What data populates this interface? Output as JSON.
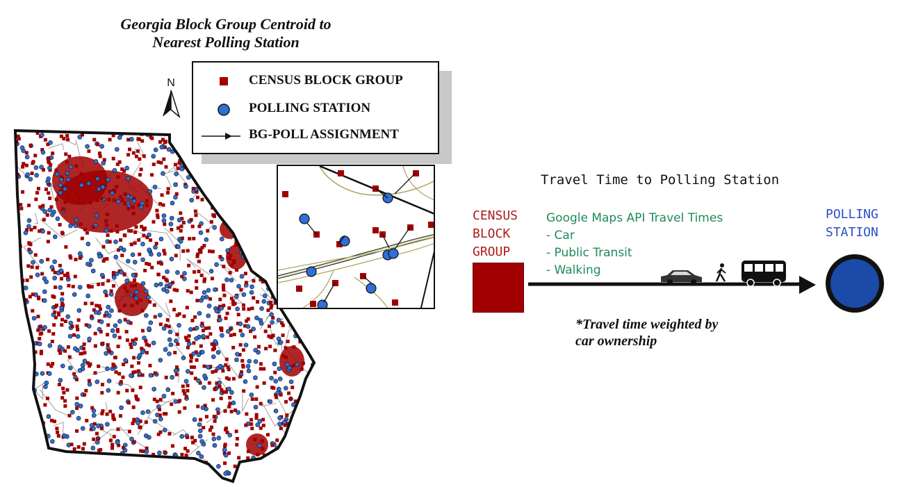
{
  "map": {
    "title_line1": "Georgia Block Group Centroid to",
    "title_line2": "Nearest Polling Station",
    "north_label": "N",
    "colors": {
      "block_group": "#a00000",
      "polling_station": "#2f6fd6",
      "county_lines": "#9a9a9a",
      "state_outline": "#111111",
      "road": "#a8a45a"
    }
  },
  "legend": {
    "items": [
      {
        "symbol": "square",
        "label": "CENSUS BLOCK GROUP"
      },
      {
        "symbol": "circle",
        "label": "POLLING STATION"
      },
      {
        "symbol": "arrow",
        "label": "BG-POLL ASSIGNMENT"
      }
    ]
  },
  "diagram": {
    "title": "Travel Time to Polling Station",
    "census_label": [
      "CENSUS",
      "BLOCK",
      "GROUP"
    ],
    "modes": [
      "Google Maps API Travel Times",
      "- Car",
      "- Public Transit",
      "- Walking"
    ],
    "polling_label": [
      "POLLING",
      "STATION"
    ],
    "icons": [
      "car-icon",
      "pedestrian-icon",
      "bus-icon"
    ],
    "note_line1": "*Travel time weighted by",
    "note_line2": "car ownership"
  }
}
